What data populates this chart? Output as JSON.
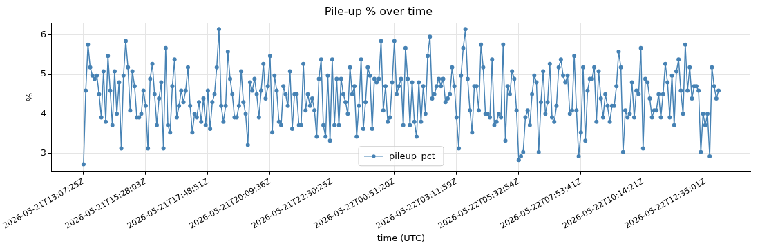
{
  "chart_data": {
    "type": "line",
    "title": "Pile-up % over time",
    "xlabel": "time (UTC)",
    "ylabel": "%",
    "categories": [
      "2026-05-21T13:07:25Z",
      null,
      null,
      null,
      null,
      null,
      null,
      null,
      null,
      null,
      null,
      null,
      null,
      null,
      null,
      null,
      null,
      null,
      null,
      null,
      null,
      null,
      null,
      null,
      null,
      null,
      null,
      null,
      "2026-05-21T15:28:03Z",
      null,
      null,
      null,
      null,
      null,
      null,
      null,
      null,
      null,
      null,
      null,
      null,
      null,
      null,
      null,
      null,
      null,
      null,
      null,
      null,
      null,
      null,
      null,
      null,
      null,
      null,
      null,
      "2026-05-21T17:48:51Z",
      null,
      null,
      null,
      null,
      null,
      null,
      null,
      null,
      null,
      null,
      null,
      null,
      null,
      null,
      null,
      null,
      null,
      null,
      null,
      null,
      null,
      null,
      null,
      null,
      null,
      null,
      null,
      "2026-05-21T20:09:36Z",
      null,
      null,
      null,
      null,
      null,
      null,
      null,
      null,
      null,
      null,
      null,
      null,
      null,
      null,
      null,
      null,
      null,
      null,
      null,
      null,
      null,
      null,
      null,
      null,
      null,
      null,
      null,
      "2026-05-21T22:30:25Z",
      null,
      null,
      null,
      null,
      null,
      null,
      null,
      null,
      null,
      null,
      null,
      null,
      null,
      null,
      null,
      null,
      null,
      null,
      null,
      null,
      null,
      null,
      null,
      null,
      null,
      null,
      null,
      "2026-05-22T00:51:20Z",
      null,
      null,
      null,
      null,
      null,
      null,
      null,
      null,
      null,
      null,
      null,
      null,
      null,
      null,
      null,
      null,
      null,
      null,
      null,
      null,
      null,
      null,
      null,
      null,
      null,
      null,
      null,
      "2026-05-22T03:11:59Z",
      null,
      null,
      null,
      null,
      null,
      null,
      null,
      null,
      null,
      null,
      null,
      null,
      null,
      null,
      null,
      null,
      null,
      null,
      null,
      null,
      null,
      null,
      null,
      null,
      null,
      null,
      null,
      "2026-05-22T05:32:54Z",
      null,
      null,
      null,
      null,
      null,
      null,
      null,
      null,
      null,
      null,
      null,
      null,
      null,
      null,
      null,
      null,
      null,
      null,
      null,
      null,
      null,
      null,
      null,
      null,
      null,
      null,
      null,
      "2026-05-22T07:53:41Z",
      null,
      null,
      null,
      null,
      null,
      null,
      null,
      null,
      null,
      null,
      null,
      null,
      null,
      null,
      null,
      null,
      null,
      null,
      null,
      null,
      null,
      null,
      null,
      null,
      null,
      null,
      null,
      "2026-05-22T10:14:21Z",
      null,
      null,
      null,
      null,
      null,
      null,
      null,
      null,
      null,
      null,
      null,
      null,
      null,
      null,
      null,
      null,
      null,
      null,
      null,
      null,
      null,
      null,
      null,
      null,
      null,
      null,
      null,
      "2026-05-22T12:35:01Z",
      null,
      null,
      null,
      null,
      null,
      null
    ],
    "series": [
      {
        "name": "pileup_pct",
        "color": "#4682b4",
        "values": [
          2.72,
          4.59,
          5.76,
          5.18,
          4.97,
          4.89,
          4.97,
          4.5,
          3.91,
          5.08,
          3.8,
          5.47,
          4.59,
          3.71,
          5.08,
          4.0,
          4.8,
          3.12,
          4.97,
          5.85,
          5.18,
          4.09,
          5.08,
          4.7,
          3.91,
          3.91,
          4.0,
          4.59,
          4.2,
          3.12,
          4.89,
          5.27,
          4.5,
          3.71,
          4.39,
          4.8,
          3.12,
          5.67,
          3.71,
          3.53,
          4.7,
          5.38,
          3.91,
          4.2,
          4.59,
          4.3,
          4.59,
          5.18,
          4.2,
          3.53,
          4.0,
          3.91,
          4.3,
          3.8,
          4.39,
          3.71,
          4.59,
          3.62,
          4.3,
          4.5,
          5.18,
          6.15,
          4.2,
          3.8,
          4.2,
          5.58,
          4.89,
          4.5,
          3.91,
          3.91,
          4.2,
          5.08,
          4.3,
          4.0,
          3.21,
          4.8,
          4.59,
          4.89,
          4.5,
          3.91,
          4.59,
          5.27,
          4.39,
          4.7,
          5.47,
          3.53,
          4.97,
          4.59,
          3.8,
          3.71,
          4.7,
          4.5,
          4.2,
          5.08,
          3.62,
          4.5,
          4.5,
          3.71,
          3.71,
          5.27,
          4.09,
          4.5,
          4.2,
          4.39,
          4.09,
          3.42,
          4.89,
          5.38,
          3.71,
          3.42,
          4.97,
          3.32,
          5.38,
          3.71,
          4.89,
          3.71,
          4.89,
          4.5,
          4.3,
          4.0,
          5.18,
          4.5,
          4.7,
          3.42,
          4.2,
          5.38,
          3.62,
          4.3,
          5.18,
          4.97,
          3.62,
          4.89,
          4.8,
          4.89,
          5.85,
          4.09,
          4.7,
          3.8,
          3.91,
          4.8,
          5.85,
          4.5,
          4.7,
          4.89,
          3.71,
          5.67,
          4.89,
          3.71,
          4.8,
          3.8,
          3.42,
          4.8,
          3.8,
          4.7,
          4.0,
          5.47,
          5.96,
          4.39,
          4.5,
          4.7,
          4.89,
          4.7,
          4.89,
          4.3,
          4.39,
          4.5,
          5.18,
          4.7,
          3.91,
          3.12,
          4.97,
          5.67,
          6.15,
          4.89,
          4.09,
          3.53,
          4.7,
          4.7,
          4.09,
          5.76,
          5.18,
          4.0,
          4.0,
          3.91,
          5.38,
          3.71,
          3.8,
          4.0,
          3.91,
          5.76,
          3.32,
          4.7,
          4.5,
          5.08,
          4.89,
          4.09,
          2.83,
          2.92,
          3.03,
          3.91,
          4.09,
          3.71,
          4.5,
          4.97,
          4.8,
          3.03,
          4.3,
          5.08,
          4.0,
          4.3,
          5.27,
          3.91,
          3.8,
          4.2,
          5.18,
          5.38,
          4.97,
          4.8,
          4.97,
          4.0,
          4.09,
          5.47,
          4.09,
          2.92,
          3.53,
          5.18,
          3.32,
          4.59,
          4.89,
          4.89,
          5.18,
          3.8,
          5.08,
          4.39,
          3.91,
          4.5,
          4.2,
          3.8,
          4.2,
          4.2,
          4.7,
          5.58,
          5.18,
          3.03,
          4.09,
          3.91,
          4.0,
          4.8,
          3.91,
          4.59,
          4.5,
          5.67,
          3.12,
          4.89,
          4.8,
          4.39,
          3.91,
          4.09,
          4.09,
          4.5,
          3.91,
          4.5,
          5.27,
          4.8,
          3.91,
          4.97,
          3.71,
          5.08,
          5.38,
          4.59,
          4.0,
          5.76,
          4.59,
          5.18,
          4.39,
          4.7,
          4.7,
          4.59,
          3.03,
          4.0,
          3.71,
          4.0,
          2.92,
          5.18,
          4.7,
          4.39,
          4.59
        ]
      }
    ],
    "ylim": [
      2.54,
      6.31
    ],
    "yticks": [
      3,
      4,
      5,
      6
    ],
    "grid": true,
    "legend": "bottom",
    "marker": "circle",
    "line_style": "solid"
  }
}
